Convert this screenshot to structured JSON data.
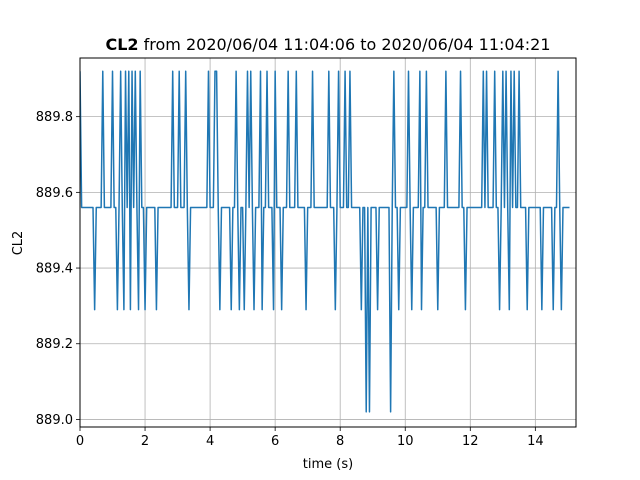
{
  "chart_data": {
    "type": "line",
    "title_bold": "CL2",
    "title_rest": " from 2020/06/04 11:04:06 to 2020/06/04 11:04:21",
    "xlabel": "time (s)",
    "ylabel": "CL2",
    "xlim": [
      0,
      15.25
    ],
    "ylim": [
      888.98,
      889.955
    ],
    "xticks": [
      0,
      2,
      4,
      6,
      8,
      10,
      12,
      14
    ],
    "yticks": [
      889.0,
      889.2,
      889.4,
      889.6,
      889.8
    ],
    "xtick_labels": [
      "0",
      "2",
      "4",
      "6",
      "8",
      "10",
      "12",
      "14"
    ],
    "ytick_labels": [
      "889.0",
      "889.2",
      "889.4",
      "889.6",
      "889.8"
    ],
    "grid": true,
    "line_color": "#1f77b4",
    "step_seconds": 0.05,
    "series": [
      {
        "values": [
          889.92,
          889.56,
          889.56,
          889.56,
          889.56,
          889.56,
          889.56,
          889.56,
          889.56,
          889.29,
          889.56,
          889.56,
          889.56,
          889.56,
          889.92,
          889.56,
          889.56,
          889.56,
          889.56,
          889.56,
          889.92,
          889.56,
          889.56,
          889.29,
          889.56,
          889.92,
          889.56,
          889.29,
          889.92,
          889.56,
          889.92,
          889.29,
          889.92,
          889.56,
          889.92,
          889.56,
          889.29,
          889.92,
          889.56,
          889.56,
          889.29,
          889.56,
          889.56,
          889.56,
          889.56,
          889.56,
          889.56,
          889.29,
          889.56,
          889.56,
          889.56,
          889.56,
          889.56,
          889.56,
          889.56,
          889.56,
          889.56,
          889.92,
          889.56,
          889.56,
          889.56,
          889.92,
          889.56,
          889.56,
          889.56,
          889.92,
          889.56,
          889.29,
          889.56,
          889.56,
          889.56,
          889.56,
          889.56,
          889.56,
          889.56,
          889.56,
          889.56,
          889.56,
          889.56,
          889.92,
          889.56,
          889.56,
          889.56,
          889.92,
          889.92,
          889.56,
          889.29,
          889.56,
          889.56,
          889.56,
          889.56,
          889.56,
          889.56,
          889.29,
          889.56,
          889.56,
          889.92,
          889.56,
          889.29,
          889.56,
          889.56,
          889.29,
          889.56,
          889.92,
          889.56,
          889.92,
          889.56,
          889.29,
          889.56,
          889.56,
          889.56,
          889.92,
          889.29,
          889.56,
          889.56,
          889.92,
          889.56,
          889.56,
          889.56,
          889.29,
          889.92,
          889.56,
          889.56,
          889.56,
          889.29,
          889.56,
          889.56,
          889.56,
          889.92,
          889.56,
          889.56,
          889.56,
          889.56,
          889.92,
          889.56,
          889.56,
          889.56,
          889.56,
          889.56,
          889.29,
          889.56,
          889.56,
          889.56,
          889.92,
          889.56,
          889.56,
          889.56,
          889.56,
          889.56,
          889.56,
          889.56,
          889.56,
          889.56,
          889.92,
          889.56,
          889.56,
          889.56,
          889.29,
          889.56,
          889.92,
          889.56,
          889.56,
          889.56,
          889.92,
          889.56,
          889.56,
          889.92,
          889.56,
          889.56,
          889.56,
          889.56,
          889.56,
          889.56,
          889.29,
          889.56,
          889.56,
          889.02,
          889.56,
          889.02,
          889.56,
          889.56,
          889.56,
          889.56,
          889.29,
          889.56,
          889.56,
          889.56,
          889.56,
          889.56,
          889.56,
          889.56,
          889.02,
          889.56,
          889.92,
          889.56,
          889.56,
          889.29,
          889.56,
          889.56,
          889.56,
          889.56,
          889.56,
          889.92,
          889.56,
          889.29,
          889.56,
          889.56,
          889.56,
          889.56,
          889.92,
          889.29,
          889.56,
          889.56,
          889.92,
          889.56,
          889.56,
          889.56,
          889.56,
          889.56,
          889.56,
          889.29,
          889.56,
          889.56,
          889.56,
          889.56,
          889.92,
          889.56,
          889.56,
          889.56,
          889.56,
          889.56,
          889.56,
          889.56,
          889.56,
          889.92,
          889.56,
          889.56,
          889.29,
          889.56,
          889.56,
          889.56,
          889.56,
          889.56,
          889.56,
          889.56,
          889.56,
          889.56,
          889.56,
          889.92,
          889.56,
          889.92,
          889.56,
          889.56,
          889.56,
          889.56,
          889.92,
          889.56,
          889.56,
          889.29,
          889.56,
          889.92,
          889.56,
          889.92,
          889.56,
          889.29,
          889.92,
          889.56,
          889.92,
          889.56,
          889.56,
          889.92,
          889.56,
          889.56,
          889.56,
          889.56,
          889.29,
          889.56,
          889.56,
          889.56,
          889.56,
          889.56,
          889.56,
          889.56,
          889.56,
          889.29,
          889.56,
          889.56,
          889.56,
          889.56,
          889.56,
          889.56,
          889.29,
          889.56,
          889.56,
          889.92,
          889.56,
          889.29,
          889.56,
          889.56,
          889.56,
          889.56,
          889.56
        ]
      }
    ]
  }
}
